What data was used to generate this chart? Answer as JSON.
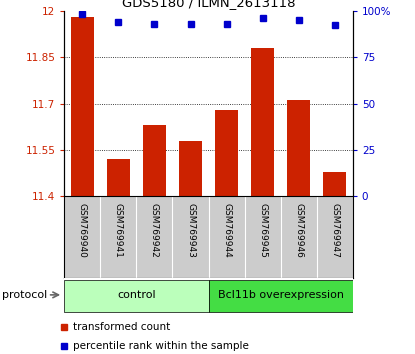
{
  "title": "GDS5180 / ILMN_2613118",
  "samples": [
    "GSM769940",
    "GSM769941",
    "GSM769942",
    "GSM769943",
    "GSM769944",
    "GSM769945",
    "GSM769946",
    "GSM769947"
  ],
  "bar_values": [
    11.98,
    11.52,
    11.63,
    11.58,
    11.68,
    11.88,
    11.71,
    11.48
  ],
  "percentile_values": [
    98,
    94,
    93,
    93,
    93,
    96,
    95,
    92
  ],
  "ylim_left": [
    11.4,
    12.0
  ],
  "ylim_right": [
    0,
    100
  ],
  "yticks_left": [
    11.4,
    11.55,
    11.7,
    11.85,
    12.0
  ],
  "yticks_right": [
    0,
    25,
    50,
    75,
    100
  ],
  "ytick_labels_left": [
    "11.4",
    "11.55",
    "11.7",
    "11.85",
    "12"
  ],
  "ytick_labels_right": [
    "0",
    "25",
    "50",
    "75",
    "100%"
  ],
  "bar_color": "#cc2200",
  "dot_color": "#0000cc",
  "control_color": "#bbffbb",
  "overexp_color": "#44dd44",
  "control_samples": [
    0,
    1,
    2,
    3
  ],
  "overexp_samples": [
    4,
    5,
    6,
    7
  ],
  "control_label": "control",
  "overexp_label": "Bcl11b overexpression",
  "protocol_label": "protocol",
  "legend_bar_label": "transformed count",
  "legend_dot_label": "percentile rank within the sample",
  "tick_area_color": "#cccccc",
  "grid_dotline_vals": [
    11.55,
    11.7,
    11.85
  ]
}
